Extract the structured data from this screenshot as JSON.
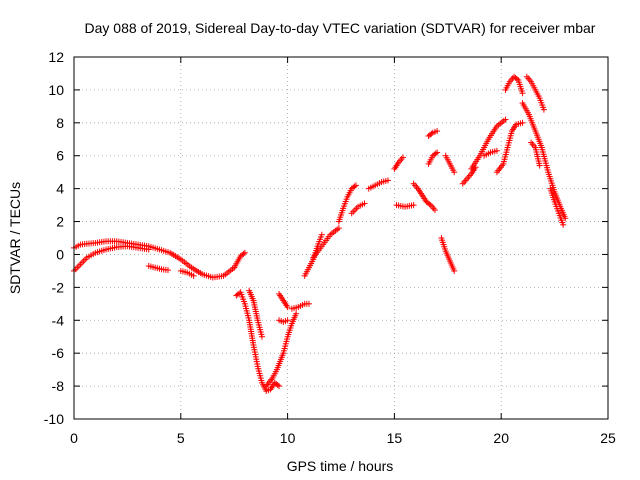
{
  "chart_data": {
    "type": "scatter",
    "title": "Day 088 of 2019, Sidereal Day-to-day VTEC variation (SDTVAR) for receiver mbar",
    "xlabel": "GPS time / hours",
    "ylabel": "SDTVAR / TECUs",
    "xlim": [
      0,
      25
    ],
    "ylim": [
      -10,
      12
    ],
    "x_ticks": [
      0,
      5,
      10,
      15,
      20,
      25
    ],
    "y_ticks": [
      -10,
      -8,
      -6,
      -4,
      -2,
      0,
      2,
      4,
      6,
      8,
      10,
      12
    ],
    "grid": true,
    "marker": "+",
    "color": "#ff0000",
    "tracks": [
      {
        "x": [
          0.0,
          0.3,
          0.6,
          1.0,
          1.5,
          2.0,
          2.5,
          3.0,
          3.5,
          4.0,
          4.5,
          5.0,
          5.5,
          6.0,
          6.5,
          7.0,
          7.5
        ],
        "y": [
          0.4,
          0.6,
          0.65,
          0.7,
          0.8,
          0.8,
          0.7,
          0.6,
          0.5,
          0.3,
          0.1,
          -0.3,
          -0.8,
          -1.2,
          -1.4,
          -1.3,
          -0.8
        ]
      },
      {
        "x": [
          0.0,
          0.3,
          0.6,
          1.0,
          1.5,
          2.0,
          2.5,
          3.0,
          3.5
        ],
        "y": [
          -1.0,
          -0.6,
          -0.2,
          0.1,
          0.3,
          0.45,
          0.5,
          0.4,
          0.3
        ]
      },
      {
        "x": [
          3.5,
          3.8,
          4.1,
          4.4
        ],
        "y": [
          -0.7,
          -0.8,
          -0.9,
          -0.95
        ]
      },
      {
        "x": [
          5.0,
          5.3,
          5.6
        ],
        "y": [
          -1.0,
          -1.1,
          -1.3
        ]
      },
      {
        "x": [
          7.5,
          7.8,
          8.0
        ],
        "y": [
          -0.8,
          -0.1,
          0.1
        ]
      },
      {
        "x": [
          7.6,
          7.8,
          8.0,
          8.2,
          8.4,
          8.6,
          8.8,
          9.0,
          9.2,
          9.4,
          9.6
        ],
        "y": [
          -2.5,
          -2.3,
          -3.0,
          -4.0,
          -5.5,
          -6.8,
          -7.8,
          -8.3,
          -8.2,
          -7.8,
          -8.0
        ]
      },
      {
        "x": [
          8.2,
          8.4,
          8.6,
          8.8
        ],
        "y": [
          -2.2,
          -2.8,
          -4.0,
          -5.0
        ]
      },
      {
        "x": [
          9.0,
          9.3,
          9.5,
          9.8,
          10.0,
          10.2,
          10.4
        ],
        "y": [
          -8.0,
          -7.5,
          -7.0,
          -6.0,
          -5.0,
          -4.2,
          -3.6
        ]
      },
      {
        "x": [
          9.6,
          9.8,
          10.0
        ],
        "y": [
          -2.4,
          -2.8,
          -3.2
        ]
      },
      {
        "x": [
          9.6,
          9.8,
          10.0
        ],
        "y": [
          -4.0,
          -4.1,
          -4.0
        ]
      },
      {
        "x": [
          10.2,
          10.5,
          10.8,
          11.0
        ],
        "y": [
          -3.3,
          -3.2,
          -3.0,
          -3.0
        ]
      },
      {
        "x": [
          10.8,
          11.0,
          11.2,
          11.4,
          11.6
        ],
        "y": [
          -1.3,
          -0.8,
          -0.3,
          0.5,
          1.2
        ]
      },
      {
        "x": [
          11.2,
          11.6,
          12.0,
          12.4
        ],
        "y": [
          -0.2,
          0.5,
          1.2,
          1.6
        ]
      },
      {
        "x": [
          12.4,
          12.6,
          12.8,
          13.0,
          13.2
        ],
        "y": [
          2.0,
          2.8,
          3.5,
          4.0,
          4.2
        ]
      },
      {
        "x": [
          13.0,
          13.3,
          13.6
        ],
        "y": [
          2.5,
          2.9,
          3.1
        ]
      },
      {
        "x": [
          13.8,
          14.1,
          14.4,
          14.7
        ],
        "y": [
          4.0,
          4.2,
          4.4,
          4.5
        ]
      },
      {
        "x": [
          15.0,
          15.2,
          15.4
        ],
        "y": [
          5.2,
          5.6,
          5.9
        ]
      },
      {
        "x": [
          15.1,
          15.5,
          15.9
        ],
        "y": [
          3.0,
          2.9,
          3.0
        ]
      },
      {
        "x": [
          15.9,
          16.1,
          16.3,
          16.5,
          16.7,
          16.9
        ],
        "y": [
          4.3,
          4.0,
          3.6,
          3.2,
          3.0,
          2.7
        ]
      },
      {
        "x": [
          16.6,
          16.8,
          17.0
        ],
        "y": [
          5.5,
          6.0,
          6.2
        ]
      },
      {
        "x": [
          16.6,
          16.8,
          17.0
        ],
        "y": [
          7.2,
          7.4,
          7.5
        ]
      },
      {
        "x": [
          17.2,
          17.4,
          17.6,
          17.8
        ],
        "y": [
          1.0,
          0.2,
          -0.4,
          -1.0
        ]
      },
      {
        "x": [
          17.4,
          17.6,
          17.8
        ],
        "y": [
          6.0,
          5.5,
          5.0
        ]
      },
      {
        "x": [
          18.2,
          18.4,
          18.6,
          18.8
        ],
        "y": [
          4.3,
          4.6,
          4.9,
          5.3
        ]
      },
      {
        "x": [
          18.6,
          19.0,
          19.4,
          19.8,
          20.2
        ],
        "y": [
          5.2,
          6.0,
          7.0,
          7.8,
          8.2
        ]
      },
      {
        "x": [
          19.2,
          19.5,
          19.8
        ],
        "y": [
          6.0,
          6.2,
          6.3
        ]
      },
      {
        "x": [
          19.8,
          20.1,
          20.3,
          20.5,
          20.7,
          21.0
        ],
        "y": [
          5.0,
          5.5,
          6.5,
          7.5,
          7.9,
          8.0
        ]
      },
      {
        "x": [
          20.2,
          20.4,
          20.6,
          20.8,
          21.0
        ],
        "y": [
          10.0,
          10.5,
          10.8,
          10.6,
          9.8
        ]
      },
      {
        "x": [
          21.2,
          21.4,
          21.6,
          21.8,
          22.0
        ],
        "y": [
          10.8,
          10.5,
          10.0,
          9.5,
          8.8
        ]
      },
      {
        "x": [
          21.0,
          21.3,
          21.6,
          21.9,
          22.2,
          22.5,
          22.8,
          23.0
        ],
        "y": [
          9.2,
          8.5,
          7.5,
          6.5,
          5.0,
          3.8,
          2.8,
          2.2
        ]
      },
      {
        "x": [
          21.4,
          21.6,
          21.8
        ],
        "y": [
          6.8,
          6.5,
          5.4
        ]
      },
      {
        "x": [
          22.3,
          22.5,
          22.7,
          22.9
        ],
        "y": [
          4.0,
          3.2,
          2.5,
          1.8
        ]
      }
    ]
  }
}
